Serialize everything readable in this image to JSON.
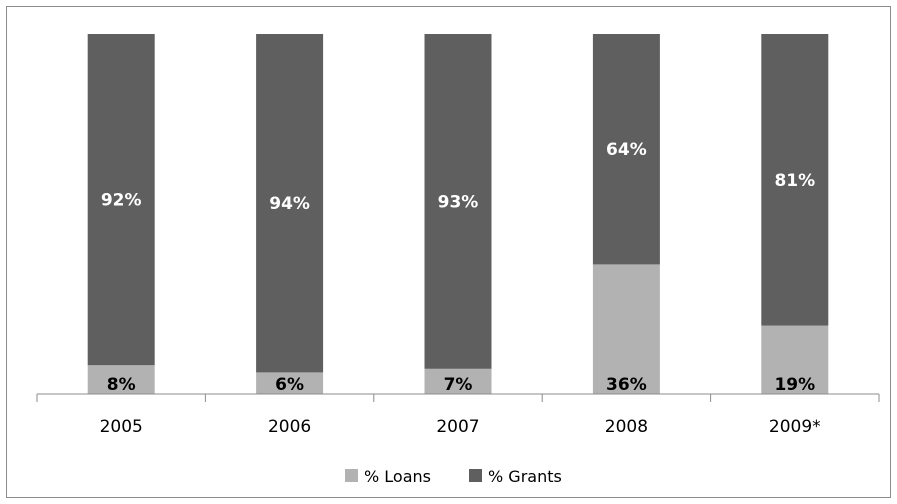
{
  "chart_data": {
    "type": "bar",
    "stacked": true,
    "categories": [
      "2005",
      "2006",
      "2007",
      "2008",
      "2009*"
    ],
    "series": [
      {
        "name": "% Loans",
        "values": [
          8,
          6,
          7,
          36,
          19
        ],
        "labels": [
          "8%",
          "6%",
          "7%",
          "36%",
          "19%"
        ],
        "color": "#b2b2b2",
        "label_color": "#000000"
      },
      {
        "name": "% Grants",
        "values": [
          92,
          94,
          93,
          64,
          81
        ],
        "labels": [
          "92%",
          "94%",
          "93%",
          "64%",
          "81%"
        ],
        "color": "#5f5f5f",
        "label_color": "#ffffff"
      }
    ],
    "ylim": [
      0,
      100
    ],
    "grid": false,
    "legend_position": "bottom",
    "title": "",
    "xlabel": "",
    "ylabel": ""
  }
}
